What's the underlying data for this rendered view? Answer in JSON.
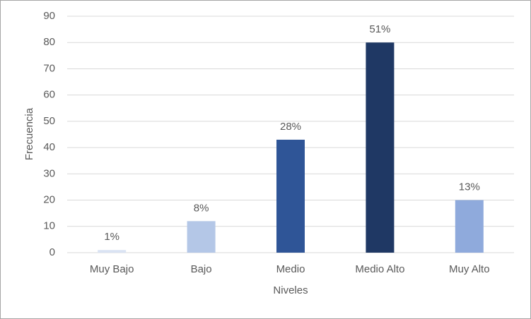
{
  "chart_data": {
    "type": "bar",
    "x_label": "Niveles",
    "y_label": "Frecuencia",
    "categories": [
      "Muy Bajo",
      "Bajo",
      "Medio",
      "Medio Alto",
      "Muy Alto"
    ],
    "values": [
      1,
      12,
      43,
      80,
      20
    ],
    "colors": [
      "#dae3f3",
      "#b4c7e7",
      "#2f5597",
      "#1f3864",
      "#8faadc"
    ],
    "shares": [
      {
        "value": 1,
        "label": "1%"
      },
      {
        "value": 8,
        "label": "8%"
      },
      {
        "value": 28,
        "label": "28%"
      },
      {
        "value": 51,
        "label": "51%"
      },
      {
        "value": 13,
        "label": "13%"
      }
    ],
    "ylim": [
      0,
      90
    ],
    "yticks": [
      0,
      10,
      20,
      30,
      40,
      50,
      60,
      70,
      80,
      90
    ],
    "grid": true
  }
}
